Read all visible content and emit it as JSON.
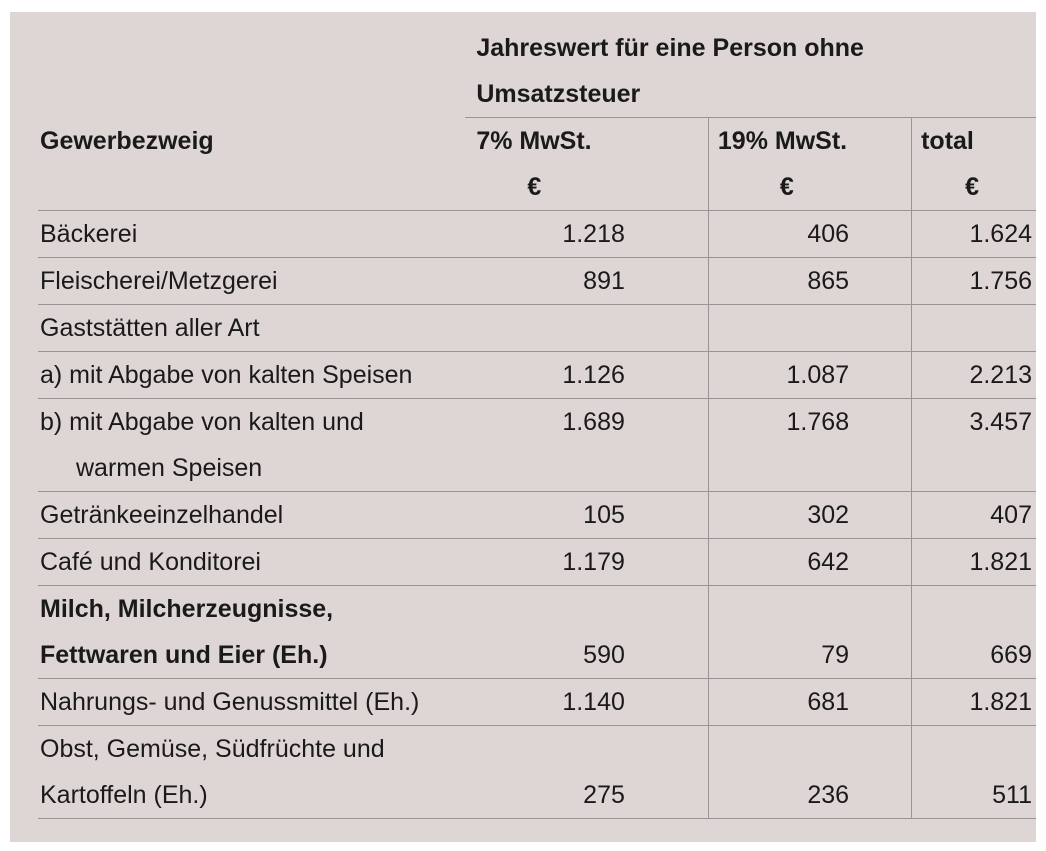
{
  "header": {
    "group_title_line1": "Jahreswert für eine Person ohne",
    "group_title_line2": "Umsatzsteuer",
    "col_label": "Gewerbezweig",
    "col1": "7% MwSt.",
    "col2": "19% MwSt.",
    "col3": "total",
    "currency": "€"
  },
  "rows": [
    {
      "label": "Bäckerei",
      "v7": "1.218",
      "v19": "406",
      "total": "1.624"
    },
    {
      "label": "Fleischerei/Metzgerei",
      "v7": "891",
      "v19": "865",
      "total": "1.756"
    },
    {
      "label": "Gaststätten aller Art"
    },
    {
      "label": "a) mit Abgabe von kalten Speisen",
      "v7": "1.126",
      "v19": "1.087",
      "total": "2.213"
    },
    {
      "label": "b) mit Abgabe von kalten und",
      "label2": "warmen Speisen",
      "v7": "1.689",
      "v19": "1.768",
      "total": "3.457"
    },
    {
      "label": "Getränkeeinzelhandel",
      "v7": "105",
      "v19": "302",
      "total": "407"
    },
    {
      "label": "Café und Konditorei",
      "v7": "1.179",
      "v19": "642",
      "total": "1.821"
    },
    {
      "label": "Milch, Milcherzeugnisse,",
      "label2": "Fettwaren und Eier (Eh.)",
      "v7": "590",
      "v19": "79",
      "total": "669"
    },
    {
      "label": "Nahrungs- und Genussmittel (Eh.)",
      "v7": "1.140",
      "v19": "681",
      "total": "1.821"
    },
    {
      "label": "Obst, Gemüse, Südfrüchte und",
      "label2": "Kartoffeln (Eh.)",
      "v7": "275",
      "v19": "236",
      "total": "511"
    }
  ]
}
